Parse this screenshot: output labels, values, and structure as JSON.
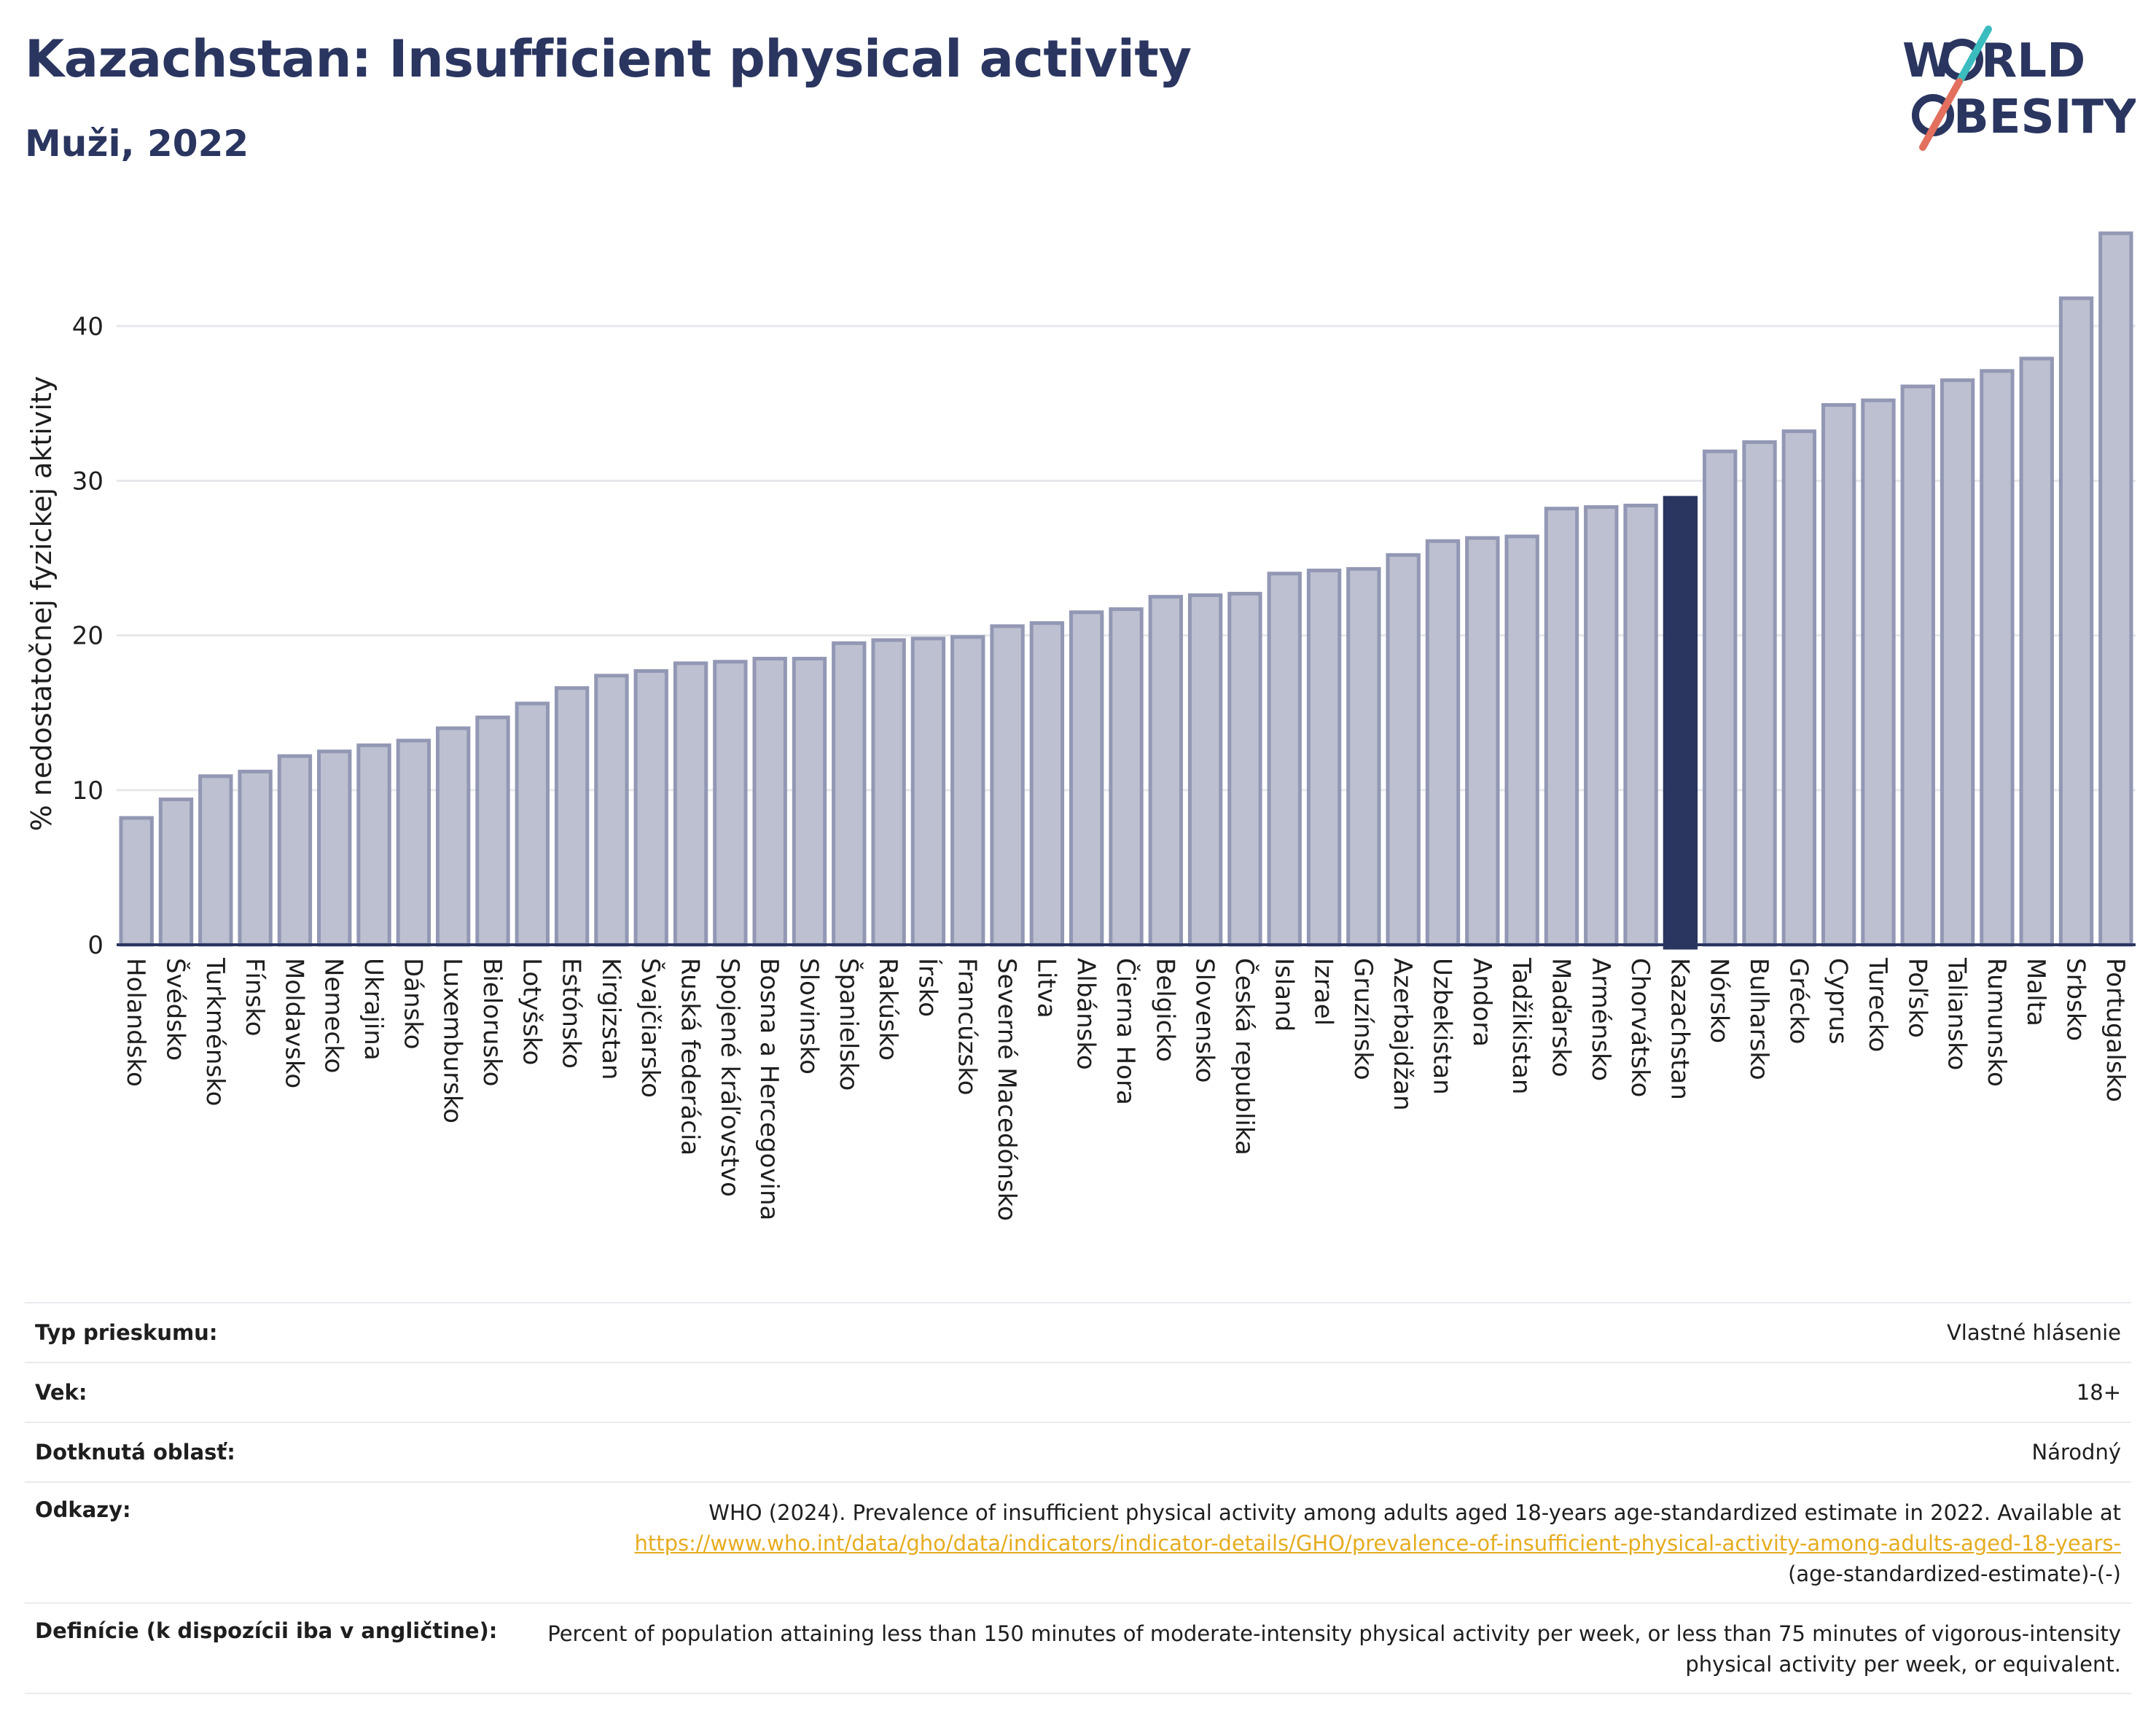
{
  "header": {
    "title": "Kazachstan: Insufficient physical activity",
    "subtitle": "Muži, 2022",
    "logo_top": "W  RLD",
    "logo_bottom": "  BESITY"
  },
  "colors": {
    "bar": "#bcc0d0",
    "bar_border": "#9298b4",
    "highlight": "#2a3560",
    "axis": "#2a3560",
    "grid": "#e6e8ec",
    "logo_teal": "#3bbcbf",
    "logo_coral": "#e36f5e"
  },
  "chart_data": {
    "type": "bar",
    "ylabel": "% nedostatočnej fyzickej aktivity",
    "ylim": [
      0,
      46
    ],
    "yticks": [
      0,
      10,
      20,
      30,
      40
    ],
    "grid": true,
    "highlight": "Kazachstan",
    "categories": [
      "Holandsko",
      "Švédsko",
      "Turkménsko",
      "Fínsko",
      "Moldavsko",
      "Nemecko",
      "Ukrajina",
      "Dánsko",
      "Luxembursko",
      "Bielorusko",
      "Lotyšsko",
      "Estónsko",
      "Kirgizstan",
      "Švajčiarsko",
      "Ruská federácia",
      "Spojené kráľovstvo",
      "Bosna a Hercegovina",
      "Slovinsko",
      "Španielsko",
      "Rakúsko",
      "Írsko",
      "Francúzsko",
      "Severné Macedónsko",
      "Litva",
      "Albánsko",
      "Čierna Hora",
      "Belgicko",
      "Slovensko",
      "Česká republika",
      "Island",
      "Izrael",
      "Gruzínsko",
      "Azerbajdžan",
      "Uzbekistan",
      "Andora",
      "Tadžikistan",
      "Maďarsko",
      "Arménsko",
      "Chorvátsko",
      "Kazachstan",
      "Nórsko",
      "Bulharsko",
      "Grécko",
      "Cyprus",
      "Turecko",
      "Poľsko",
      "Taliansko",
      "Rumunsko",
      "Malta",
      "Srbsko",
      "Portugalsko"
    ],
    "values": [
      8.2,
      9.4,
      10.9,
      11.2,
      12.2,
      12.5,
      12.9,
      13.2,
      14.0,
      14.7,
      15.6,
      16.6,
      17.4,
      17.7,
      18.2,
      18.3,
      18.5,
      18.5,
      19.5,
      19.7,
      19.8,
      19.9,
      20.6,
      20.8,
      21.5,
      21.7,
      22.5,
      22.6,
      22.7,
      24.0,
      24.2,
      24.3,
      25.2,
      26.1,
      26.3,
      26.4,
      28.2,
      28.3,
      28.4,
      28.9,
      31.9,
      32.5,
      33.2,
      34.9,
      35.2,
      36.1,
      36.5,
      37.1,
      37.9,
      41.8,
      46.0
    ]
  },
  "info": {
    "survey_type_label": "Typ prieskumu:",
    "survey_type_value": "Vlastné hlásenie",
    "age_label": "Vek:",
    "age_value": "18+",
    "area_label": "Dotknutá oblasť:",
    "area_value": "Národný",
    "refs_label": "Odkazy:",
    "refs_text": "WHO (2024). Prevalence of insufficient physical activity among adults aged 18-years age-standardized estimate in 2022. Available at",
    "refs_link": "https://www.who.int/data/gho/data/indicators/indicator-details/GHO/prevalence-of-insufficient-physical-activity-among-adults-aged-18-years-",
    "refs_suffix": "(age-standardized-estimate)-(-)",
    "definition_label": "Definície (k dispozícii iba v angličtine):",
    "definition_value": "Percent of population attaining less than 150 minutes of moderate-intensity physical activity per week, or less than 75 minutes of vigorous-intensity physical activity per week, or equivalent."
  }
}
